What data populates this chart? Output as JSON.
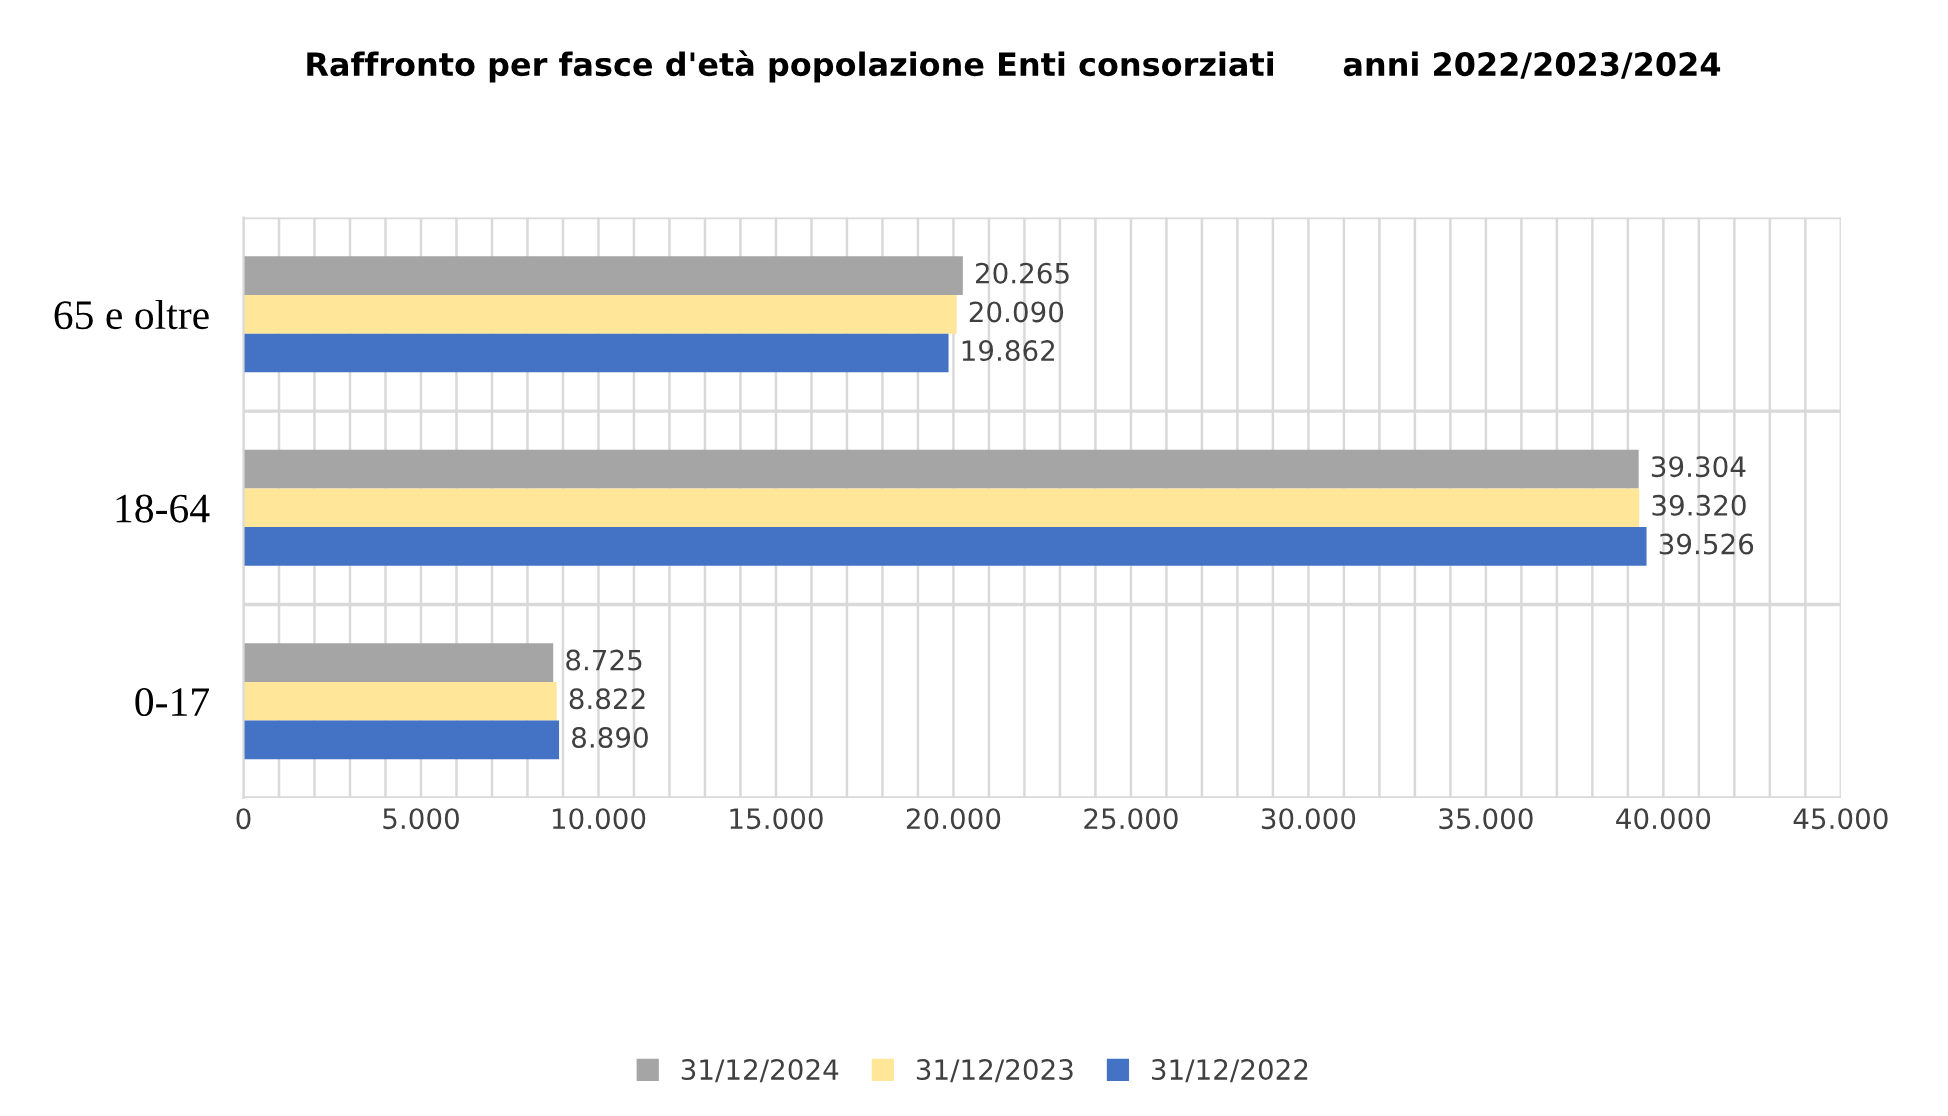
{
  "chart_data": {
    "type": "bar",
    "orientation": "horizontal",
    "title": "Raffronto per fasce d'età popolazione Enti consorziati      anni 2022/2023/2024",
    "categories": [
      "65 e oltre",
      "18-64",
      "0-17"
    ],
    "series": [
      {
        "name": "31/12/2024",
        "color": "#a5a5a5",
        "values": [
          20265,
          39304,
          8725
        ],
        "value_labels": [
          "20.265",
          "39.304",
          "8.725"
        ]
      },
      {
        "name": "31/12/2023",
        "color": "#ffe699",
        "values": [
          20090,
          39320,
          8822
        ],
        "value_labels": [
          "20.090",
          "39.320",
          "8.822"
        ]
      },
      {
        "name": "31/12/2022",
        "color": "#4472c4",
        "values": [
          19862,
          39526,
          8890
        ],
        "value_labels": [
          "19.862",
          "39.526",
          "8.890"
        ]
      }
    ],
    "xlim": [
      0,
      45000
    ],
    "xticks": [
      {
        "value": 0,
        "label": "0"
      },
      {
        "value": 1000,
        "label": null
      },
      {
        "value": 2000,
        "label": null
      },
      {
        "value": 3000,
        "label": null
      },
      {
        "value": 4000,
        "label": null
      },
      {
        "value": 5000,
        "label": "5.000"
      },
      {
        "value": 6000,
        "label": null
      },
      {
        "value": 7000,
        "label": null
      },
      {
        "value": 8000,
        "label": null
      },
      {
        "value": 9000,
        "label": null
      },
      {
        "value": 10000,
        "label": "10.000"
      },
      {
        "value": 11000,
        "label": null
      },
      {
        "value": 12000,
        "label": null
      },
      {
        "value": 13000,
        "label": null
      },
      {
        "value": 14000,
        "label": null
      },
      {
        "value": 15000,
        "label": "15.000"
      },
      {
        "value": 16000,
        "label": null
      },
      {
        "value": 17000,
        "label": null
      },
      {
        "value": 18000,
        "label": null
      },
      {
        "value": 19000,
        "label": null
      },
      {
        "value": 20000,
        "label": "20.000"
      },
      {
        "value": 21000,
        "label": null
      },
      {
        "value": 22000,
        "label": null
      },
      {
        "value": 23000,
        "label": null
      },
      {
        "value": 24000,
        "label": null
      },
      {
        "value": 25000,
        "label": "25.000"
      },
      {
        "value": 26000,
        "label": null
      },
      {
        "value": 27000,
        "label": null
      },
      {
        "value": 28000,
        "label": null
      },
      {
        "value": 29000,
        "label": null
      },
      {
        "value": 30000,
        "label": "30.000"
      },
      {
        "value": 31000,
        "label": null
      },
      {
        "value": 32000,
        "label": null
      },
      {
        "value": 33000,
        "label": null
      },
      {
        "value": 34000,
        "label": null
      },
      {
        "value": 35000,
        "label": "35.000"
      },
      {
        "value": 36000,
        "label": null
      },
      {
        "value": 37000,
        "label": null
      },
      {
        "value": 38000,
        "label": null
      },
      {
        "value": 39000,
        "label": null
      },
      {
        "value": 40000,
        "label": "40.000"
      },
      {
        "value": 41000,
        "label": null
      },
      {
        "value": 42000,
        "label": null
      },
      {
        "value": 43000,
        "label": null
      },
      {
        "value": 44000,
        "label": null
      },
      {
        "value": 45000,
        "label": "45.000"
      }
    ],
    "grid": true,
    "legend": "bottom"
  }
}
